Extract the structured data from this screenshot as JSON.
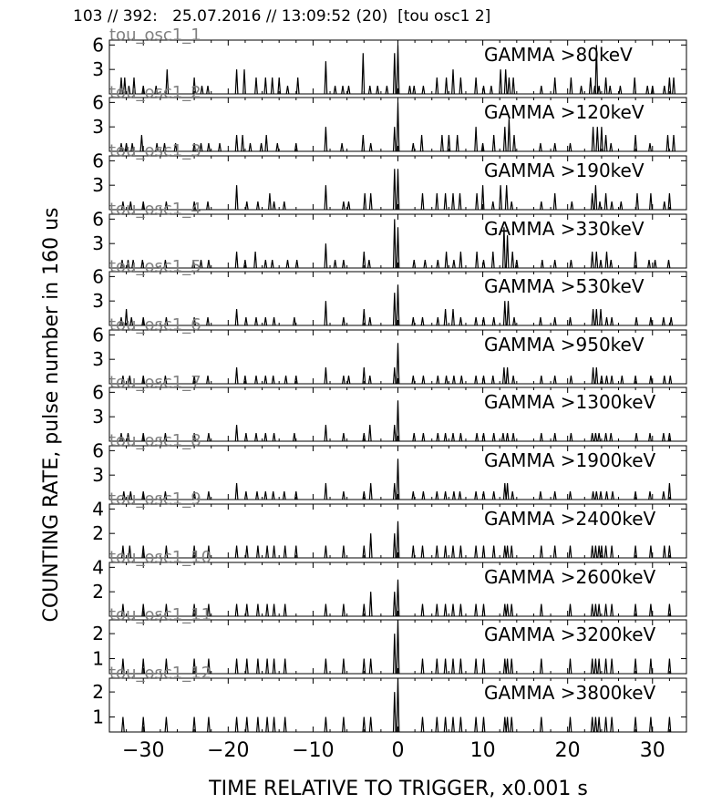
{
  "header": "103 // 392:   25.07.2016 // 13:09:52 (20)  [tou osc1 2]",
  "ylabel": "COUNTING RATE,   pulse number in 160 us",
  "xlabel": "TIME RELATIVE TO TRIGGER,   x0.001 s",
  "chart_data": [
    {
      "type": "line",
      "name": "tou_osc1_1",
      "title": "GAMMA >80keV",
      "xlim": [
        -34,
        34
      ],
      "ylim": [
        0,
        6.6
      ],
      "yticks": [
        3,
        6
      ],
      "x": [
        -32.6,
        -32.2,
        -31.7,
        -31.1,
        -30.0,
        -28.5,
        -27.2,
        -24.0,
        -23.1,
        -22.4,
        -19.0,
        -18.1,
        -16.7,
        -15.6,
        -14.8,
        -14.0,
        -13.0,
        -11.8,
        -8.5,
        -7.4,
        -6.5,
        -5.8,
        -4.1,
        -3.3,
        -2.4,
        -1.3,
        -0.4,
        0.0,
        1.4,
        1.9,
        3.0,
        4.6,
        5.7,
        6.5,
        7.4,
        9.2,
        10.1,
        11.0,
        12.1,
        12.7,
        13.1,
        13.6,
        16.9,
        18.5,
        20.4,
        21.6,
        22.7,
        23.2,
        23.4,
        23.7,
        24.5,
        25.0,
        26.2,
        27.9,
        29.4,
        30.0,
        31.4,
        32.0,
        32.5
      ],
      "values": [
        2,
        2,
        1,
        2,
        1,
        1,
        3,
        2,
        1,
        1,
        3,
        3,
        2,
        2,
        2,
        2,
        1,
        2,
        4,
        1,
        1,
        1,
        5,
        1,
        1,
        1,
        5,
        6,
        1,
        1,
        1,
        2,
        2,
        3,
        2,
        2,
        1,
        1,
        3,
        3,
        2,
        2,
        1,
        2,
        2,
        1,
        2,
        1,
        6,
        1,
        2,
        1,
        1,
        2,
        1,
        1,
        1,
        2,
        2
      ]
    },
    {
      "type": "line",
      "name": "tou_osc1_2",
      "title": "GAMMA >120keV",
      "xlim": [
        -34,
        34
      ],
      "ylim": [
        0,
        6.6
      ],
      "yticks": [
        3,
        6
      ],
      "x": [
        -32.6,
        -32.0,
        -31.3,
        -30.2,
        -28.4,
        -27.5,
        -26.2,
        -24.0,
        -23.2,
        -22.3,
        -21.0,
        -19.0,
        -18.3,
        -17.4,
        -16.1,
        -15.5,
        -14.2,
        -12.0,
        -8.5,
        -6.6,
        -4.1,
        -3.2,
        -0.4,
        0.0,
        1.8,
        2.8,
        5.2,
        6.0,
        7.0,
        9.2,
        10.0,
        11.3,
        12.6,
        13.1,
        13.7,
        16.8,
        18.5,
        20.3,
        23.0,
        23.5,
        24.0,
        24.5,
        25.1,
        28.0,
        29.7,
        31.8,
        32.5
      ],
      "values": [
        1,
        1,
        1,
        2,
        1,
        1,
        1,
        1,
        1,
        1,
        1,
        2,
        2,
        1,
        1,
        2,
        1,
        1,
        3,
        1,
        2,
        1,
        3,
        6,
        1,
        2,
        2,
        2,
        2,
        3,
        1,
        2,
        3,
        4,
        2,
        1,
        1,
        1,
        3,
        3,
        3,
        2,
        1,
        2,
        1,
        2,
        2
      ]
    },
    {
      "type": "line",
      "name": "tou_osc1_3",
      "title": "GAMMA >190keV",
      "xlim": [
        -34,
        34
      ],
      "ylim": [
        0,
        6.6
      ],
      "yticks": [
        3,
        6
      ],
      "x": [
        -32.4,
        -31.5,
        -30.0,
        -27.3,
        -24.0,
        -22.4,
        -19.0,
        -17.8,
        -16.5,
        -15.1,
        -14.6,
        -13.4,
        -8.5,
        -6.4,
        -5.8,
        -3.9,
        -3.2,
        -0.4,
        0.0,
        2.9,
        4.6,
        5.6,
        6.5,
        7.3,
        9.3,
        10.0,
        11.2,
        12.1,
        12.8,
        13.4,
        16.9,
        18.5,
        20.5,
        22.9,
        23.3,
        23.8,
        24.5,
        25.2,
        26.3,
        28.2,
        29.8,
        31.4,
        32.0
      ],
      "values": [
        1,
        1,
        1,
        1,
        1,
        1,
        3,
        1,
        1,
        2,
        1,
        1,
        3,
        1,
        1,
        2,
        2,
        5,
        5,
        2,
        2,
        2,
        2,
        2,
        2,
        3,
        1,
        3,
        3,
        1,
        1,
        2,
        1,
        2,
        3,
        1,
        2,
        1,
        1,
        2,
        2,
        1,
        2
      ]
    },
    {
      "type": "line",
      "name": "tou_osc1_4",
      "title": "GAMMA >330keV",
      "xlim": [
        -34,
        34
      ],
      "ylim": [
        0,
        6.6
      ],
      "yticks": [
        3,
        6
      ],
      "x": [
        -32.5,
        -31.8,
        -31.2,
        -30.1,
        -27.4,
        -24.1,
        -23.2,
        -22.3,
        -19.0,
        -18.0,
        -16.8,
        -15.6,
        -14.8,
        -13.0,
        -11.9,
        -8.5,
        -7.4,
        -6.4,
        -4.0,
        -3.4,
        -0.4,
        0.0,
        1.9,
        3.2,
        4.7,
        5.7,
        6.6,
        7.4,
        9.3,
        10.1,
        11.2,
        12.5,
        12.9,
        13.5,
        14.0,
        17.0,
        18.5,
        20.4,
        22.9,
        23.4,
        23.9,
        24.6,
        25.1,
        28.0,
        29.6,
        30.3,
        31.9
      ],
      "values": [
        1,
        1,
        1,
        1,
        1,
        1,
        1,
        1,
        2,
        1,
        2,
        1,
        1,
        1,
        1,
        3,
        1,
        1,
        2,
        1,
        6,
        5,
        1,
        1,
        1,
        2,
        1,
        2,
        2,
        1,
        2,
        5,
        4,
        2,
        1,
        1,
        1,
        1,
        2,
        2,
        1,
        2,
        1,
        2,
        1,
        1,
        1
      ]
    },
    {
      "type": "line",
      "name": "tou_osc1_5",
      "title": "GAMMA >530keV",
      "xlim": [
        -34,
        34
      ],
      "ylim": [
        0,
        6.6
      ],
      "yticks": [
        3,
        6
      ],
      "x": [
        -32.6,
        -32.0,
        -31.4,
        -30.0,
        -27.3,
        -24.0,
        -22.4,
        -19.0,
        -17.9,
        -16.7,
        -15.6,
        -14.6,
        -12.2,
        -8.5,
        -6.4,
        -4.0,
        -3.3,
        -0.4,
        0.0,
        1.8,
        2.9,
        4.7,
        5.6,
        6.5,
        7.4,
        9.2,
        10.1,
        11.3,
        12.6,
        13.0,
        13.7,
        16.8,
        18.5,
        20.3,
        23.0,
        23.4,
        23.9,
        24.6,
        25.2,
        28.1,
        29.8,
        31.3,
        32.2
      ],
      "values": [
        1,
        2,
        1,
        1,
        1,
        1,
        1,
        2,
        1,
        1,
        1,
        1,
        1,
        3,
        1,
        2,
        1,
        4,
        5,
        1,
        1,
        1,
        2,
        2,
        1,
        1,
        1,
        1,
        3,
        3,
        1,
        1,
        1,
        1,
        2,
        2,
        2,
        1,
        1,
        1,
        1,
        1,
        1
      ]
    },
    {
      "type": "line",
      "name": "tou_osc1_6",
      "title": "GAMMA >950keV",
      "xlim": [
        -34,
        34
      ],
      "ylim": [
        0,
        6.6
      ],
      "yticks": [
        3,
        6
      ],
      "x": [
        -32.4,
        -31.6,
        -30.0,
        -27.4,
        -24.0,
        -22.4,
        -19.0,
        -18.0,
        -16.7,
        -15.6,
        -14.7,
        -13.2,
        -12.0,
        -8.5,
        -6.4,
        -5.8,
        -4.0,
        -3.3,
        -0.4,
        0.0,
        1.8,
        3.0,
        4.7,
        5.7,
        6.6,
        7.5,
        9.2,
        10.1,
        11.2,
        12.5,
        12.9,
        13.6,
        16.9,
        18.5,
        20.4,
        23.0,
        23.4,
        24.0,
        24.6,
        25.2,
        26.4,
        28.0,
        29.8,
        31.4,
        32.1
      ],
      "values": [
        1,
        1,
        1,
        1,
        1,
        1,
        2,
        1,
        1,
        1,
        1,
        1,
        1,
        2,
        1,
        1,
        2,
        1,
        2,
        5,
        1,
        1,
        1,
        1,
        1,
        1,
        1,
        1,
        1,
        2,
        2,
        1,
        1,
        1,
        1,
        2,
        2,
        1,
        1,
        1,
        1,
        1,
        1,
        1,
        1
      ]
    },
    {
      "type": "line",
      "name": "tou_osc1_7",
      "title": "GAMMA >1300keV",
      "xlim": [
        -34,
        34
      ],
      "ylim": [
        0,
        6.6
      ],
      "yticks": [
        3,
        6
      ],
      "x": [
        -32.6,
        -31.8,
        -30.0,
        -27.4,
        -24.0,
        -22.3,
        -19.0,
        -17.9,
        -16.7,
        -15.6,
        -14.6,
        -12.2,
        -8.5,
        -6.4,
        -4.0,
        -3.3,
        -0.4,
        0.0,
        1.9,
        3.0,
        4.7,
        5.6,
        6.5,
        7.4,
        9.3,
        10.1,
        11.3,
        12.4,
        12.9,
        13.6,
        16.9,
        18.5,
        20.4,
        22.9,
        23.3,
        23.7,
        24.5,
        25.1,
        28.1,
        29.7,
        31.3,
        32.0
      ],
      "values": [
        1,
        1,
        1,
        1,
        1,
        1,
        2,
        1,
        1,
        1,
        1,
        1,
        2,
        1,
        1,
        2,
        2,
        5,
        1,
        1,
        1,
        1,
        1,
        1,
        1,
        1,
        1,
        1,
        1,
        1,
        1,
        1,
        1,
        1,
        1,
        1,
        1,
        1,
        1,
        1,
        1,
        1
      ]
    },
    {
      "type": "line",
      "name": "tou_osc1_8",
      "title": "GAMMA >1900keV",
      "xlim": [
        -34,
        34
      ],
      "ylim": [
        0,
        6.6
      ],
      "yticks": [
        3,
        6
      ],
      "x": [
        -32.3,
        -31.5,
        -30.0,
        -27.4,
        -24.0,
        -22.3,
        -19.0,
        -17.9,
        -16.6,
        -15.6,
        -14.7,
        -13.4,
        -12.0,
        -8.5,
        -6.4,
        -4.0,
        -3.2,
        -0.4,
        0.0,
        1.8,
        3.0,
        4.6,
        5.6,
        6.6,
        7.3,
        9.2,
        10.1,
        11.3,
        12.6,
        12.9,
        13.5,
        16.8,
        18.5,
        20.3,
        23.0,
        23.4,
        23.9,
        24.6,
        25.3,
        28.0,
        29.7,
        31.3,
        32.0
      ],
      "values": [
        1,
        1,
        1,
        1,
        1,
        1,
        2,
        1,
        1,
        1,
        1,
        1,
        1,
        2,
        1,
        1,
        2,
        2,
        5,
        1,
        1,
        1,
        1,
        1,
        1,
        1,
        1,
        1,
        2,
        2,
        1,
        1,
        1,
        1,
        1,
        1,
        1,
        1,
        1,
        1,
        1,
        1,
        2
      ]
    },
    {
      "type": "line",
      "name": "tou_osc1_9",
      "title": "GAMMA >2400keV",
      "xlim": [
        -34,
        34
      ],
      "ylim": [
        0,
        4.4
      ],
      "yticks": [
        2,
        4
      ],
      "x": [
        -32.4,
        -31.6,
        -30.0,
        -27.3,
        -24.0,
        -22.3,
        -19.0,
        -17.8,
        -16.5,
        -15.4,
        -14.6,
        -13.3,
        -12.0,
        -8.5,
        -6.4,
        -4.0,
        -3.2,
        -0.4,
        0.0,
        1.8,
        2.9,
        4.6,
        5.6,
        6.5,
        7.4,
        9.2,
        10.1,
        11.3,
        12.6,
        12.9,
        13.4,
        16.9,
        18.5,
        20.3,
        22.9,
        23.3,
        23.7,
        24.0,
        24.5,
        25.2,
        28.0,
        29.8,
        31.4,
        32.0
      ],
      "values": [
        1,
        1,
        1,
        1,
        1,
        1,
        1,
        1,
        1,
        1,
        1,
        1,
        1,
        1,
        1,
        1,
        2,
        2,
        3,
        1,
        1,
        1,
        1,
        1,
        1,
        1,
        1,
        1,
        1,
        1,
        1,
        1,
        1,
        1,
        1,
        1,
        1,
        1,
        1,
        1,
        1,
        1,
        1,
        1
      ]
    },
    {
      "type": "line",
      "name": "tou_osc1_10",
      "title": "GAMMA >2600keV",
      "xlim": [
        -34,
        34
      ],
      "ylim": [
        0,
        4.4
      ],
      "yticks": [
        2,
        4
      ],
      "x": [
        -32.4,
        -30.0,
        -27.3,
        -24.0,
        -22.3,
        -19.0,
        -17.8,
        -16.5,
        -15.4,
        -14.6,
        -13.3,
        -8.5,
        -6.4,
        -4.0,
        -3.2,
        -0.4,
        0.0,
        2.9,
        4.6,
        5.6,
        6.5,
        7.4,
        9.2,
        10.1,
        12.6,
        12.9,
        13.4,
        16.9,
        20.3,
        22.9,
        23.3,
        23.7,
        24.5,
        25.2,
        28.0,
        29.8,
        32.0
      ],
      "values": [
        1,
        1,
        1,
        1,
        1,
        1,
        1,
        1,
        1,
        1,
        1,
        1,
        1,
        1,
        2,
        2,
        3,
        1,
        1,
        1,
        1,
        1,
        1,
        1,
        1,
        1,
        1,
        1,
        1,
        1,
        1,
        1,
        1,
        1,
        1,
        1,
        1
      ]
    },
    {
      "type": "line",
      "name": "tou_osc1_11",
      "title": "GAMMA >3200keV",
      "xlim": [
        -34,
        34
      ],
      "ylim": [
        0.4,
        2.55
      ],
      "yticks": [
        1,
        2
      ],
      "x": [
        -32.4,
        -30.0,
        -27.3,
        -24.0,
        -22.3,
        -19.0,
        -17.8,
        -16.5,
        -15.4,
        -14.6,
        -13.3,
        -8.5,
        -6.4,
        -4.0,
        -3.2,
        -0.4,
        0.0,
        2.9,
        4.6,
        5.6,
        6.5,
        7.4,
        9.2,
        10.1,
        12.6,
        12.9,
        13.4,
        16.9,
        20.3,
        22.9,
        23.3,
        23.7,
        24.5,
        25.2,
        28.0,
        29.8,
        32.0
      ],
      "values": [
        1,
        1,
        1,
        1,
        1,
        1,
        1,
        1,
        1,
        1,
        1,
        1,
        1,
        1,
        1,
        2,
        3,
        1,
        1,
        1,
        1,
        1,
        1,
        1,
        1,
        1,
        1,
        1,
        1,
        1,
        1,
        1,
        1,
        1,
        1,
        1,
        1
      ]
    },
    {
      "type": "line",
      "name": "tou_osc1_12",
      "title": "GAMMA >3800keV",
      "xlim": [
        -34,
        34
      ],
      "ylim": [
        0.4,
        2.55
      ],
      "yticks": [
        1,
        2
      ],
      "x": [
        -32.4,
        -30.0,
        -27.3,
        -24.0,
        -22.3,
        -19.0,
        -17.8,
        -16.5,
        -15.4,
        -14.6,
        -13.3,
        -8.5,
        -6.4,
        -4.0,
        -3.2,
        -0.4,
        0.0,
        2.9,
        4.6,
        5.6,
        6.5,
        7.4,
        9.2,
        10.1,
        12.6,
        12.9,
        13.4,
        16.9,
        20.3,
        22.9,
        23.3,
        23.7,
        24.5,
        25.2,
        28.0,
        29.8,
        32.0
      ],
      "values": [
        1,
        1,
        1,
        1,
        1,
        1,
        1,
        1,
        1,
        1,
        1,
        1,
        1,
        1,
        1,
        2,
        3,
        1,
        1,
        1,
        1,
        1,
        1,
        1,
        1,
        1,
        1,
        1,
        1,
        1,
        1,
        1,
        1,
        1,
        1,
        1,
        1
      ]
    }
  ],
  "xaxis": {
    "ticks": [
      -30,
      -20,
      -10,
      0,
      10,
      20,
      30
    ],
    "labels": [
      "−30",
      "−20",
      "−10",
      "0",
      "10",
      "20",
      "30"
    ]
  }
}
